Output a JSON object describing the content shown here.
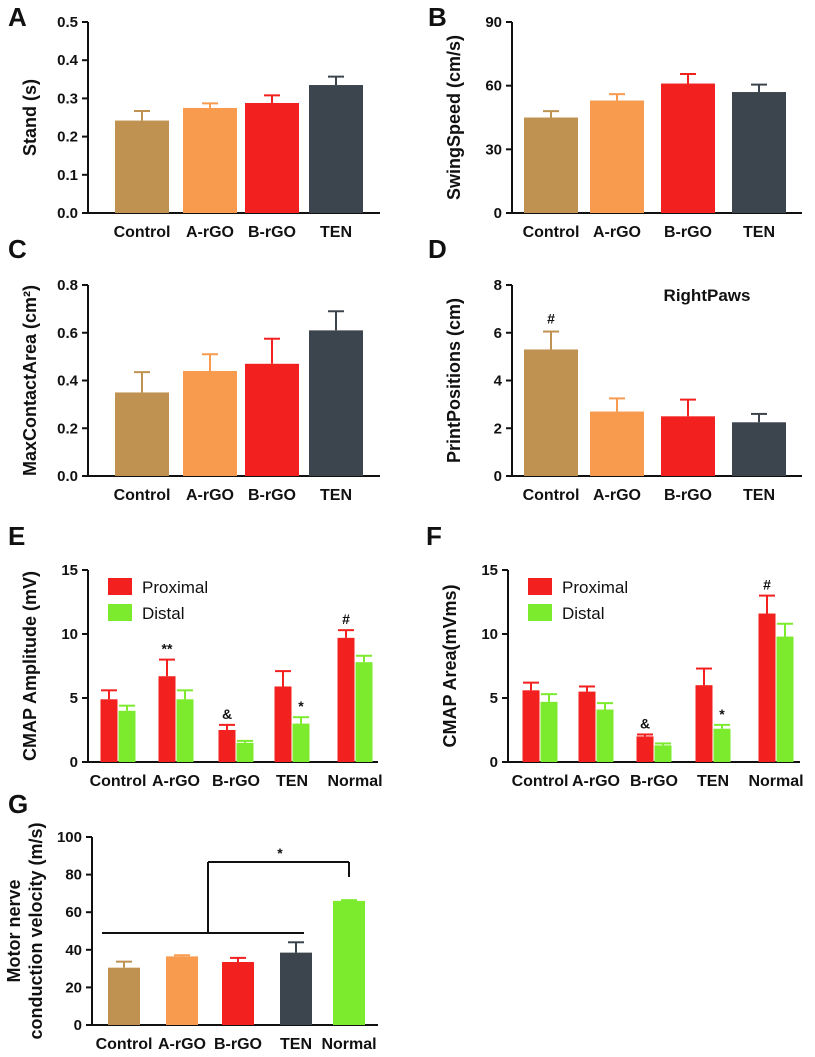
{
  "colors": {
    "Control": "#C09252",
    "A-rGO": "#F99B4F",
    "B-rGO": "#F2201E",
    "TEN": "#3C454E",
    "Normal": "#7CEB2E",
    "Proximal": "#F2201E",
    "Distal": "#7CEB2E",
    "axis": "#111111"
  },
  "chart_data": [
    {
      "panel": "A",
      "type": "bar",
      "title": "",
      "xlabel": "",
      "ylabel": "Stand (s)",
      "ylim": [
        0,
        0.5
      ],
      "yticks": [
        "0.0",
        "0.1",
        "0.2",
        "0.3",
        "0.4",
        "0.5"
      ],
      "categories": [
        "Control",
        "A-rGO",
        "B-rGO",
        "TEN"
      ],
      "values": [
        0.242,
        0.275,
        0.288,
        0.335
      ],
      "errors": [
        0.025,
        0.012,
        0.02,
        0.022
      ],
      "annotations": []
    },
    {
      "panel": "B",
      "type": "bar",
      "title": "",
      "xlabel": "",
      "ylabel": "SwingSpeed (cm/s)",
      "ylim": [
        0,
        90
      ],
      "yticks": [
        "0",
        "30",
        "60",
        "90"
      ],
      "categories": [
        "Control",
        "A-rGO",
        "B-rGO",
        "TEN"
      ],
      "values": [
        45,
        53,
        61,
        57
      ],
      "errors": [
        3,
        3,
        4.5,
        3.5
      ],
      "annotations": []
    },
    {
      "panel": "C",
      "type": "bar",
      "title": "",
      "xlabel": "",
      "ylabel": "MaxContactArea (cm²)",
      "ylim": [
        0,
        0.8
      ],
      "yticks": [
        "0.0",
        "0.2",
        "0.4",
        "0.6",
        "0.8"
      ],
      "categories": [
        "Control",
        "A-rGO",
        "B-rGO",
        "TEN"
      ],
      "values": [
        0.35,
        0.44,
        0.47,
        0.61
      ],
      "errors": [
        0.085,
        0.07,
        0.105,
        0.08
      ],
      "annotations": []
    },
    {
      "panel": "D",
      "type": "bar",
      "title": "RightPaws",
      "xlabel": "",
      "ylabel": "PrintPositions (cm)",
      "ylim": [
        0,
        8
      ],
      "yticks": [
        "0",
        "2",
        "4",
        "6",
        "8"
      ],
      "categories": [
        "Control",
        "A-rGO",
        "B-rGO",
        "TEN"
      ],
      "values": [
        5.3,
        2.7,
        2.5,
        2.25
      ],
      "errors": [
        0.75,
        0.55,
        0.7,
        0.35
      ],
      "annotations": [
        {
          "category": 0,
          "text": "#"
        }
      ]
    },
    {
      "panel": "E",
      "type": "bar",
      "title": "",
      "xlabel": "",
      "ylabel": "CMAP Amplitude (mV)",
      "ylim": [
        0,
        15
      ],
      "yticks": [
        "0",
        "5",
        "10",
        "15"
      ],
      "categories": [
        "Control",
        "A-rGO",
        "B-rGO",
        "TEN",
        "Normal"
      ],
      "series": [
        {
          "name": "Proximal",
          "values": [
            4.9,
            6.7,
            2.5,
            5.9,
            9.7
          ],
          "errors": [
            0.7,
            1.3,
            0.4,
            1.2,
            0.6
          ]
        },
        {
          "name": "Distal",
          "values": [
            4.0,
            4.9,
            1.5,
            3.0,
            7.8
          ],
          "errors": [
            0.4,
            0.7,
            0.15,
            0.5,
            0.5
          ]
        }
      ],
      "legend": "top-left",
      "annotations": [
        {
          "category": 1,
          "series": 0,
          "text": "**"
        },
        {
          "category": 2,
          "series": 0,
          "text": "&"
        },
        {
          "category": 3,
          "series": 1,
          "text": "*"
        },
        {
          "category": 4,
          "series": 0,
          "text": "#"
        }
      ]
    },
    {
      "panel": "F",
      "type": "bar",
      "title": "",
      "xlabel": "",
      "ylabel": "CMAP Area(mVms)",
      "ylim": [
        0,
        15
      ],
      "yticks": [
        "0",
        "5",
        "10",
        "15"
      ],
      "categories": [
        "Control",
        "A-rGO",
        "B-rGO",
        "TEN",
        "Normal"
      ],
      "series": [
        {
          "name": "Proximal",
          "values": [
            5.6,
            5.5,
            2.0,
            6.0,
            11.6
          ],
          "errors": [
            0.6,
            0.4,
            0.15,
            1.3,
            1.4
          ]
        },
        {
          "name": "Distal",
          "values": [
            4.7,
            4.1,
            1.3,
            2.6,
            9.8
          ],
          "errors": [
            0.6,
            0.5,
            0.15,
            0.3,
            1.0
          ]
        }
      ],
      "legend": "top-left",
      "annotations": [
        {
          "category": 2,
          "series": 0,
          "text": "&"
        },
        {
          "category": 3,
          "series": 1,
          "text": "*"
        },
        {
          "category": 4,
          "series": 0,
          "text": "#"
        }
      ]
    },
    {
      "panel": "G",
      "type": "bar",
      "title": "",
      "xlabel": "",
      "ylabel_lines": [
        "Motor nerve",
        "conduction velocity (m/s)"
      ],
      "ylim": [
        0,
        100
      ],
      "yticks": [
        "0",
        "20",
        "40",
        "60",
        "80",
        "100"
      ],
      "categories": [
        "Control",
        "A-rGO",
        "B-rGO",
        "TEN",
        "Normal"
      ],
      "values": [
        30.5,
        36.5,
        33.5,
        38.5,
        66
      ],
      "errors": [
        3.2,
        0.6,
        2.2,
        5.5,
        0.4
      ],
      "annotations": [],
      "bracket_text": "*"
    }
  ]
}
